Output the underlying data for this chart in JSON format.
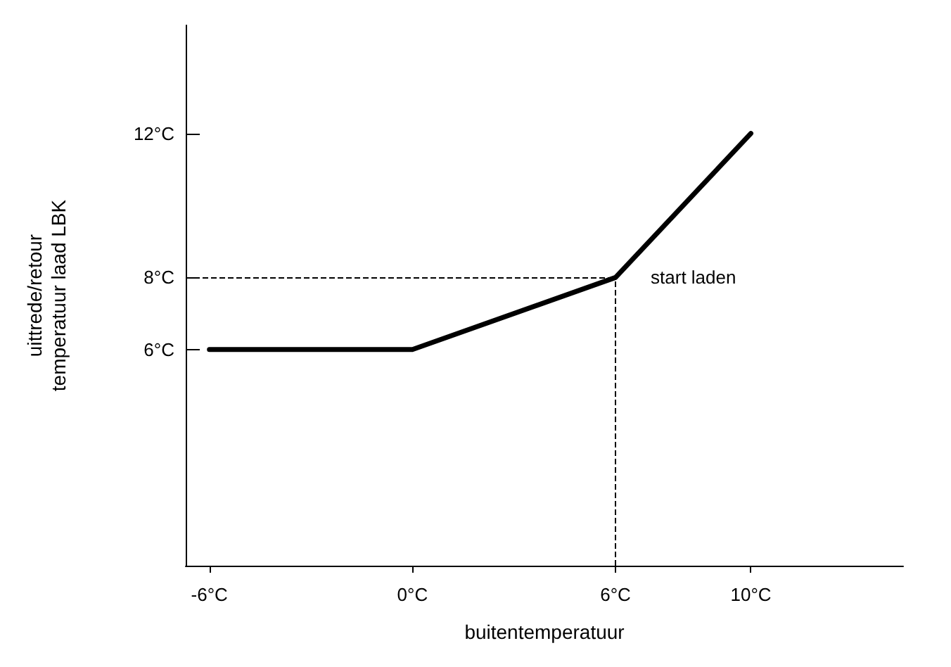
{
  "chart_data": {
    "type": "line",
    "xlabel": "buitentemperatuur",
    "ylabel": "uittrede/retour\ntemperatuur laad LBK",
    "x": [
      -6,
      0,
      6,
      10
    ],
    "series": [
      {
        "color": "#000000",
        "values": [
          6,
          6,
          8,
          12
        ]
      }
    ],
    "xlim": [
      -6.7,
      14.5
    ],
    "ylim": [
      0,
      15
    ],
    "xticks": [
      {
        "value": -6,
        "label": "-6°C"
      },
      {
        "value": 0,
        "label": "0°C"
      },
      {
        "value": 6,
        "label": "6°C"
      },
      {
        "value": 10,
        "label": "10°C"
      }
    ],
    "yticks": [
      {
        "value": 6,
        "label": "6°C"
      },
      {
        "value": 8,
        "label": "8°C"
      },
      {
        "value": 12,
        "label": "12°C"
      }
    ],
    "ref_lines": [
      {
        "axis": "y",
        "value": 8,
        "line_style": "dashed",
        "color": "#000000"
      },
      {
        "axis": "x",
        "value": 6,
        "line_style": "dashed",
        "color": "#000000"
      }
    ],
    "annotations": [
      {
        "text": "start laden",
        "x": 6,
        "y": 8
      }
    ],
    "grid": false,
    "marker": "none",
    "line_style": "solid"
  }
}
